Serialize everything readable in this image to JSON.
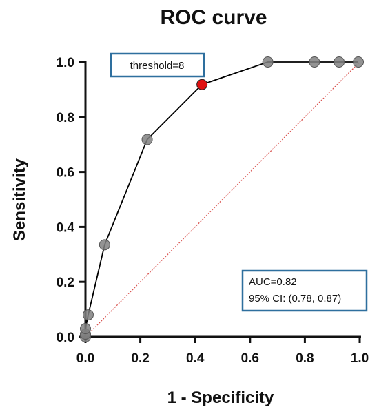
{
  "chart_data": {
    "type": "line",
    "title": "ROC curve",
    "xlabel": "1 - Specificity",
    "ylabel": "Sensitivity",
    "xlim": [
      0.0,
      1.0
    ],
    "ylim": [
      0.0,
      1.0
    ],
    "x_ticks": [
      "0.0",
      "0.2",
      "0.4",
      "0.6",
      "0.8",
      "1.0"
    ],
    "y_ticks": [
      "0.0",
      "0.2",
      "0.4",
      "0.6",
      "0.8",
      "1.0"
    ],
    "grid": false,
    "series": [
      {
        "type": "line",
        "color": "#000000",
        "marker_color": "#808080",
        "points": [
          {
            "x": 0.0,
            "y": 0.0
          },
          {
            "x": 0.0,
            "y": 0.01
          },
          {
            "x": 0.0,
            "y": 0.03
          },
          {
            "x": 0.01,
            "y": 0.08
          },
          {
            "x": 0.07,
            "y": 0.335
          },
          {
            "x": 0.225,
            "y": 0.718
          },
          {
            "x": 0.425,
            "y": 0.918
          },
          {
            "x": 0.665,
            "y": 1.0
          },
          {
            "x": 0.835,
            "y": 1.0
          },
          {
            "x": 0.925,
            "y": 1.0
          },
          {
            "x": 0.995,
            "y": 1.0
          }
        ],
        "highlight": {
          "index": 6,
          "color": "#e01010",
          "label": "threshold=8"
        }
      },
      {
        "type": "reference-line",
        "style": "dotted",
        "color": "#d9534f",
        "points": [
          {
            "x": 0.0,
            "y": 0.0
          },
          {
            "x": 1.0,
            "y": 1.0
          }
        ]
      }
    ],
    "annotations": {
      "auc": "AUC=0.82",
      "ci": "95% CI: (0.78, 0.87)"
    },
    "box_color": "#2e6f9e"
  }
}
